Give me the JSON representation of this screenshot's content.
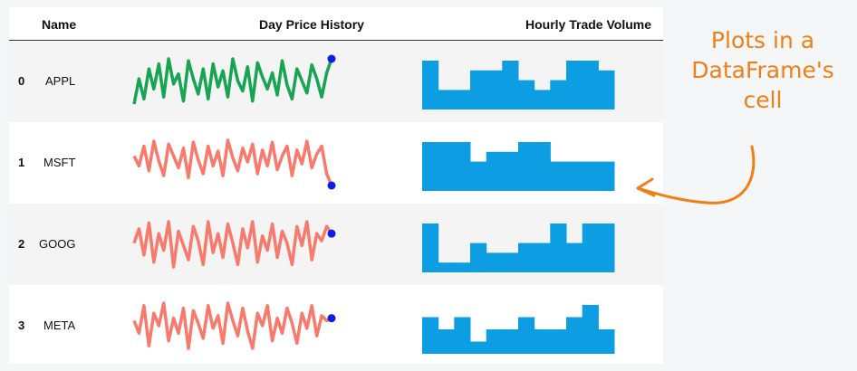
{
  "table": {
    "headers": {
      "name": "Name",
      "price": "Day Price History",
      "volume": "Hourly Trade Volume"
    },
    "rows": [
      {
        "index": "0",
        "name": "APPL",
        "color": "#17a553",
        "price": [
          5,
          30,
          10,
          40,
          20,
          45,
          12,
          50,
          25,
          35,
          8,
          48,
          30,
          15,
          40,
          10,
          45,
          22,
          38,
          12,
          50,
          28,
          18,
          42,
          8,
          46,
          32,
          20,
          36,
          14,
          48,
          24,
          10,
          40,
          28,
          16,
          44,
          30,
          12,
          36,
          50
        ],
        "volume": [
          5,
          2,
          2,
          4,
          4,
          5,
          3,
          2,
          3,
          5,
          5,
          4
        ]
      },
      {
        "index": "1",
        "name": "MSFT",
        "color": "#f77a6c",
        "price": [
          30,
          20,
          40,
          15,
          45,
          25,
          10,
          42,
          30,
          18,
          38,
          8,
          44,
          26,
          12,
          40,
          20,
          35,
          10,
          46,
          28,
          15,
          38,
          24,
          42,
          12,
          36,
          20,
          44,
          16,
          30,
          40,
          10,
          36,
          22,
          45,
          18,
          32,
          40,
          12,
          0
        ],
        "volume": [
          5,
          5,
          5,
          3,
          4,
          4,
          5,
          5,
          3,
          3,
          3,
          3
        ]
      },
      {
        "index": "2",
        "name": "GOOG",
        "color": "#f77a6c",
        "price": [
          28,
          40,
          18,
          45,
          12,
          36,
          22,
          46,
          8,
          38,
          26,
          14,
          42,
          30,
          10,
          46,
          20,
          36,
          16,
          44,
          28,
          10,
          40,
          24,
          46,
          12,
          34,
          22,
          44,
          16,
          38,
          28,
          10,
          42,
          26,
          46,
          14,
          36,
          30,
          42,
          36
        ],
        "volume": [
          5,
          1,
          1,
          3,
          2,
          2,
          3,
          3,
          5,
          3,
          5,
          5
        ]
      },
      {
        "index": "3",
        "name": "META",
        "color": "#f77a6c",
        "price": [
          30,
          20,
          42,
          10,
          36,
          26,
          44,
          14,
          32,
          20,
          40,
          8,
          38,
          28,
          16,
          42,
          24,
          34,
          12,
          44,
          30,
          18,
          40,
          22,
          8,
          36,
          26,
          42,
          14,
          32,
          20,
          40,
          28,
          12,
          36,
          24,
          42,
          18,
          34,
          30,
          32
        ],
        "volume": [
          3,
          2,
          3,
          1,
          2,
          2,
          3,
          2,
          2,
          3,
          4,
          2
        ]
      }
    ]
  },
  "annotation": {
    "lines": [
      "Plots in a",
      "DataFrame's",
      "cell"
    ],
    "color": "#f07f15"
  },
  "colors": {
    "bar": "#0d9de2",
    "endpoint": "#0a1ee8",
    "header_rule": "#333333",
    "striped_row": "#f4f4f4"
  }
}
